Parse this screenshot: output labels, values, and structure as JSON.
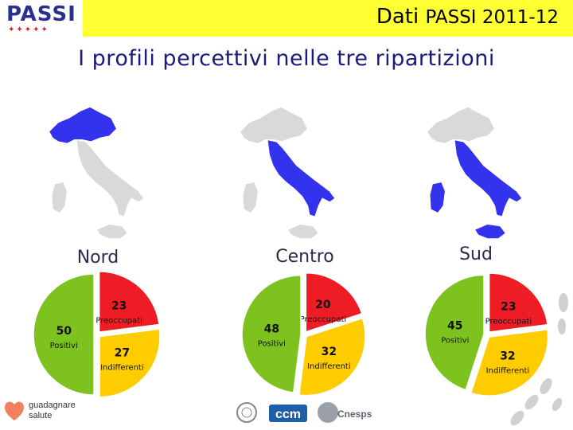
{
  "header": {
    "logo_text": "PASSI",
    "title_main": "Dati",
    "title_years": "PASSI 2011-12"
  },
  "page_title": "I profili percettivi nelle tre ripartizioni",
  "colors": {
    "positivi": "#7dc21e",
    "preoccupati": "#ee1c24",
    "indifferenti": "#ffcc00",
    "map_highlight": "#3333ee",
    "map_base": "#d9d9d9"
  },
  "chart_data": [
    {
      "type": "pie",
      "title": "Nord",
      "categories": [
        "Preoccupati",
        "Indifferenti",
        "Positivi"
      ],
      "values": [
        23,
        27,
        50
      ]
    },
    {
      "type": "pie",
      "title": "Centro",
      "categories": [
        "Preoccupati",
        "Indifferenti",
        "Positivi"
      ],
      "values": [
        20,
        32,
        48
      ]
    },
    {
      "type": "pie",
      "title": "Sud",
      "categories": [
        "Preoccupati",
        "Indifferenti",
        "Positivi"
      ],
      "values": [
        23,
        32,
        45
      ]
    }
  ],
  "footer": {
    "guadagnare_line1": "guadagnare",
    "guadagnare_line2": "salute",
    "ccm_text": "ccm",
    "cnesps_text": "Cnesps"
  }
}
